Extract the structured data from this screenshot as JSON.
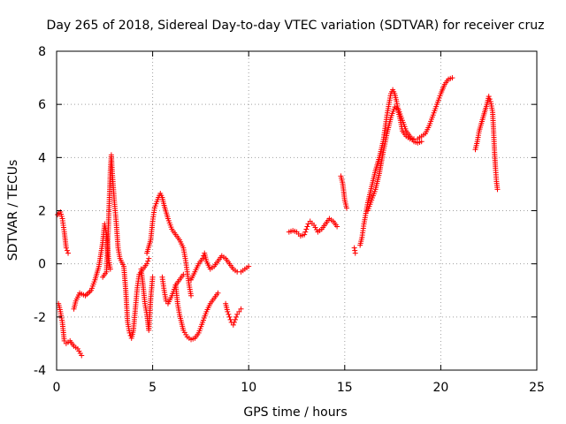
{
  "chart_data": {
    "type": "scatter",
    "title": "Day 265 of 2018, Sidereal Day-to-day VTEC variation (SDTVAR) for receiver cruz",
    "xlabel": "GPS time / hours",
    "ylabel": "SDTVAR / TECUs",
    "xlim": [
      0,
      25
    ],
    "ylim": [
      -4,
      8
    ],
    "xticks": [
      "0",
      "5",
      "10",
      "15",
      "20",
      "25"
    ],
    "yticks": [
      "-4",
      "-2",
      "0",
      "2",
      "4",
      "6",
      "8"
    ],
    "grid": true,
    "marker": "+",
    "color": "#ff0000",
    "series": [
      {
        "name": "SDTVAR",
        "tracks": [
          [
            [
              0.05,
              1.85
            ],
            [
              0.2,
              1.95
            ],
            [
              0.3,
              1.7
            ],
            [
              0.4,
              1.2
            ],
            [
              0.5,
              0.6
            ],
            [
              0.6,
              0.4
            ]
          ],
          [
            [
              0.1,
              -1.5
            ],
            [
              0.2,
              -1.8
            ],
            [
              0.3,
              -2.2
            ],
            [
              0.4,
              -2.9
            ],
            [
              0.5,
              -3.0
            ],
            [
              0.7,
              -2.9
            ],
            [
              0.9,
              -3.1
            ],
            [
              1.1,
              -3.2
            ],
            [
              1.3,
              -3.45
            ]
          ],
          [
            [
              0.9,
              -1.7
            ],
            [
              1.0,
              -1.4
            ],
            [
              1.2,
              -1.1
            ],
            [
              1.5,
              -1.2
            ],
            [
              1.8,
              -1.0
            ],
            [
              2.0,
              -0.6
            ],
            [
              2.2,
              -0.1
            ],
            [
              2.4,
              0.8
            ],
            [
              2.5,
              1.5
            ],
            [
              2.6,
              1.1
            ],
            [
              2.7,
              0.2
            ],
            [
              2.8,
              -0.2
            ]
          ],
          [
            [
              2.4,
              -0.5
            ],
            [
              2.6,
              -0.3
            ],
            [
              2.7,
              1.5
            ],
            [
              2.75,
              2.5
            ],
            [
              2.8,
              3.5
            ],
            [
              2.85,
              4.1
            ],
            [
              2.9,
              3.4
            ],
            [
              3.0,
              2.4
            ],
            [
              3.1,
              1.6
            ],
            [
              3.2,
              0.6
            ],
            [
              3.3,
              0.2
            ],
            [
              3.5,
              -0.1
            ],
            [
              3.6,
              -1.0
            ],
            [
              3.7,
              -2.2
            ],
            [
              3.8,
              -2.6
            ],
            [
              3.9,
              -2.8
            ],
            [
              4.0,
              -2.5
            ],
            [
              4.1,
              -1.7
            ],
            [
              4.2,
              -0.9
            ],
            [
              4.3,
              -0.4
            ],
            [
              4.5,
              -0.2
            ],
            [
              4.7,
              0.0
            ],
            [
              4.8,
              0.2
            ]
          ],
          [
            [
              4.4,
              -0.2
            ],
            [
              4.5,
              -0.8
            ],
            [
              4.6,
              -1.5
            ],
            [
              4.7,
              -1.9
            ],
            [
              4.8,
              -2.5
            ],
            [
              4.9,
              -1.3
            ],
            [
              5.0,
              -0.5
            ]
          ],
          [
            [
              4.7,
              0.4
            ],
            [
              4.9,
              0.9
            ],
            [
              5.0,
              1.6
            ],
            [
              5.1,
              2.1
            ],
            [
              5.3,
              2.5
            ],
            [
              5.4,
              2.65
            ],
            [
              5.5,
              2.5
            ],
            [
              5.6,
              2.2
            ],
            [
              5.8,
              1.7
            ],
            [
              6.0,
              1.3
            ],
            [
              6.2,
              1.1
            ],
            [
              6.4,
              0.9
            ],
            [
              6.6,
              0.6
            ],
            [
              6.7,
              0.2
            ],
            [
              6.8,
              -0.3
            ],
            [
              6.9,
              -0.8
            ],
            [
              7.0,
              -1.2
            ]
          ],
          [
            [
              5.5,
              -0.5
            ],
            [
              5.6,
              -1.0
            ],
            [
              5.7,
              -1.4
            ],
            [
              5.8,
              -1.5
            ],
            [
              6.0,
              -1.2
            ],
            [
              6.2,
              -0.8
            ],
            [
              6.4,
              -0.6
            ],
            [
              6.6,
              -0.4
            ]
          ],
          [
            [
              6.2,
              -0.8
            ],
            [
              6.3,
              -1.5
            ],
            [
              6.4,
              -1.9
            ],
            [
              6.5,
              -2.2
            ],
            [
              6.6,
              -2.5
            ],
            [
              6.8,
              -2.75
            ],
            [
              7.0,
              -2.85
            ],
            [
              7.2,
              -2.8
            ],
            [
              7.4,
              -2.6
            ],
            [
              7.6,
              -2.2
            ],
            [
              7.8,
              -1.8
            ],
            [
              8.0,
              -1.5
            ],
            [
              8.2,
              -1.3
            ],
            [
              8.4,
              -1.1
            ]
          ],
          [
            [
              7.0,
              -0.6
            ],
            [
              7.2,
              -0.3
            ],
            [
              7.4,
              0.0
            ],
            [
              7.6,
              0.2
            ],
            [
              7.7,
              0.4
            ],
            [
              7.8,
              0.1
            ],
            [
              8.0,
              -0.2
            ],
            [
              8.2,
              -0.1
            ],
            [
              8.4,
              0.1
            ],
            [
              8.6,
              0.3
            ],
            [
              8.8,
              0.2
            ],
            [
              9.0,
              0.0
            ],
            [
              9.2,
              -0.2
            ],
            [
              9.4,
              -0.3
            ],
            [
              9.6,
              -0.3
            ],
            [
              9.8,
              -0.2
            ],
            [
              10.0,
              -0.1
            ]
          ],
          [
            [
              8.8,
              -1.5
            ],
            [
              8.9,
              -1.8
            ],
            [
              9.0,
              -2.0
            ],
            [
              9.1,
              -2.2
            ],
            [
              9.2,
              -2.3
            ],
            [
              9.3,
              -2.1
            ],
            [
              9.4,
              -1.9
            ],
            [
              9.5,
              -1.8
            ],
            [
              9.6,
              -1.7
            ]
          ],
          [
            [
              12.1,
              1.2
            ],
            [
              12.3,
              1.25
            ],
            [
              12.5,
              1.2
            ],
            [
              12.7,
              1.05
            ],
            [
              12.9,
              1.1
            ],
            [
              13.0,
              1.3
            ],
            [
              13.1,
              1.5
            ],
            [
              13.2,
              1.6
            ],
            [
              13.4,
              1.45
            ],
            [
              13.6,
              1.2
            ],
            [
              13.8,
              1.3
            ],
            [
              14.0,
              1.5
            ],
            [
              14.2,
              1.7
            ],
            [
              14.4,
              1.6
            ],
            [
              14.6,
              1.4
            ]
          ],
          [
            [
              14.8,
              3.3
            ],
            [
              14.9,
              3.0
            ],
            [
              15.0,
              2.4
            ],
            [
              15.1,
              2.1
            ]
          ],
          [
            [
              15.5,
              0.6
            ],
            [
              15.55,
              0.4
            ]
          ],
          [
            [
              15.8,
              0.7
            ],
            [
              15.9,
              1.0
            ],
            [
              16.0,
              1.5
            ],
            [
              16.1,
              1.9
            ],
            [
              16.2,
              2.3
            ],
            [
              16.4,
              2.9
            ],
            [
              16.6,
              3.5
            ],
            [
              16.8,
              4.0
            ],
            [
              17.0,
              4.6
            ],
            [
              17.1,
              5.1
            ],
            [
              17.2,
              5.6
            ],
            [
              17.3,
              6.0
            ],
            [
              17.4,
              6.4
            ],
            [
              17.5,
              6.55
            ],
            [
              17.6,
              6.4
            ],
            [
              17.7,
              6.1
            ],
            [
              17.8,
              5.7
            ],
            [
              17.9,
              5.4
            ],
            [
              18.0,
              5.0
            ],
            [
              18.2,
              4.8
            ],
            [
              18.4,
              4.7
            ],
            [
              18.6,
              4.7
            ],
            [
              18.8,
              4.7
            ],
            [
              19.0,
              4.8
            ],
            [
              19.2,
              4.9
            ],
            [
              19.4,
              5.2
            ],
            [
              19.6,
              5.6
            ],
            [
              19.8,
              6.0
            ],
            [
              20.0,
              6.4
            ],
            [
              20.2,
              6.75
            ],
            [
              20.4,
              6.95
            ],
            [
              20.6,
              7.0
            ]
          ],
          [
            [
              16.2,
              2.0
            ],
            [
              16.4,
              2.4
            ],
            [
              16.6,
              2.8
            ],
            [
              16.8,
              3.4
            ],
            [
              17.0,
              4.2
            ],
            [
              17.2,
              4.9
            ],
            [
              17.4,
              5.5
            ],
            [
              17.6,
              5.9
            ],
            [
              17.8,
              5.8
            ],
            [
              18.0,
              5.4
            ],
            [
              18.2,
              5.0
            ],
            [
              18.4,
              4.8
            ],
            [
              18.6,
              4.6
            ],
            [
              18.8,
              4.55
            ],
            [
              19.0,
              4.6
            ]
          ],
          [
            [
              21.8,
              4.3
            ],
            [
              21.9,
              4.6
            ],
            [
              22.0,
              5.0
            ],
            [
              22.2,
              5.5
            ],
            [
              22.4,
              6.0
            ],
            [
              22.5,
              6.3
            ],
            [
              22.6,
              6.1
            ],
            [
              22.7,
              5.7
            ],
            [
              22.75,
              5.0
            ],
            [
              22.8,
              4.2
            ],
            [
              22.85,
              3.6
            ],
            [
              22.9,
              3.1
            ],
            [
              22.95,
              2.8
            ]
          ]
        ]
      }
    ]
  }
}
